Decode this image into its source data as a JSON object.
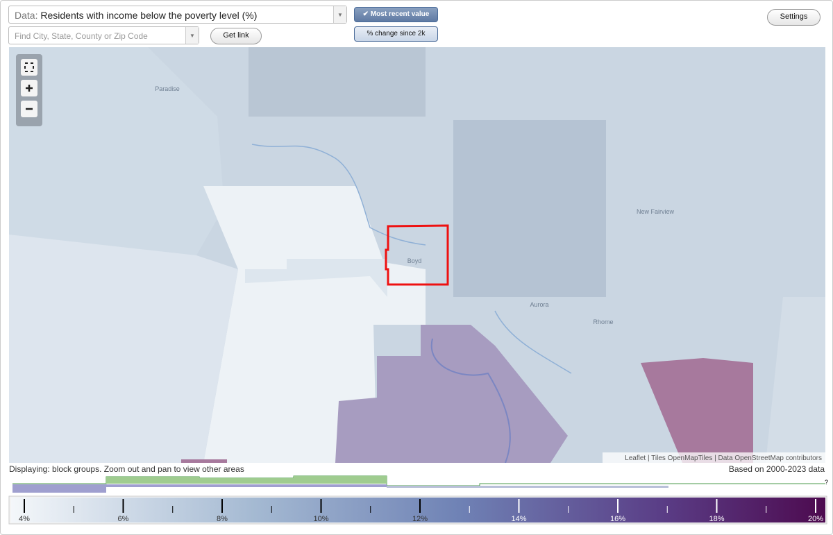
{
  "data_select": {
    "prefix": "Data:",
    "value": "Residents with income below the poverty level (%)"
  },
  "search": {
    "placeholder": "Find City, State, County or Zip Code"
  },
  "buttons": {
    "get_link": "Get link",
    "most_recent": "Most recent value",
    "percent_change": "% change since 2k",
    "settings": "Settings"
  },
  "map": {
    "places": [
      {
        "label": "Paradise"
      },
      {
        "label": "Boyd"
      },
      {
        "label": "New Fairview"
      },
      {
        "label": "Aurora"
      },
      {
        "label": "Rhome"
      }
    ],
    "attribution": "Leaflet | Tiles OpenMapTiles | Data OpenStreetMap contributors"
  },
  "status": {
    "displaying": "Displaying: block groups. Zoom out and pan to view other areas",
    "based_on": "Based on 2000-2023 data"
  },
  "histogram_help": "?",
  "legend": {
    "labels": [
      "4%",
      "6%",
      "8%",
      "10%",
      "12%",
      "14%",
      "16%",
      "18%",
      "20%"
    ]
  }
}
